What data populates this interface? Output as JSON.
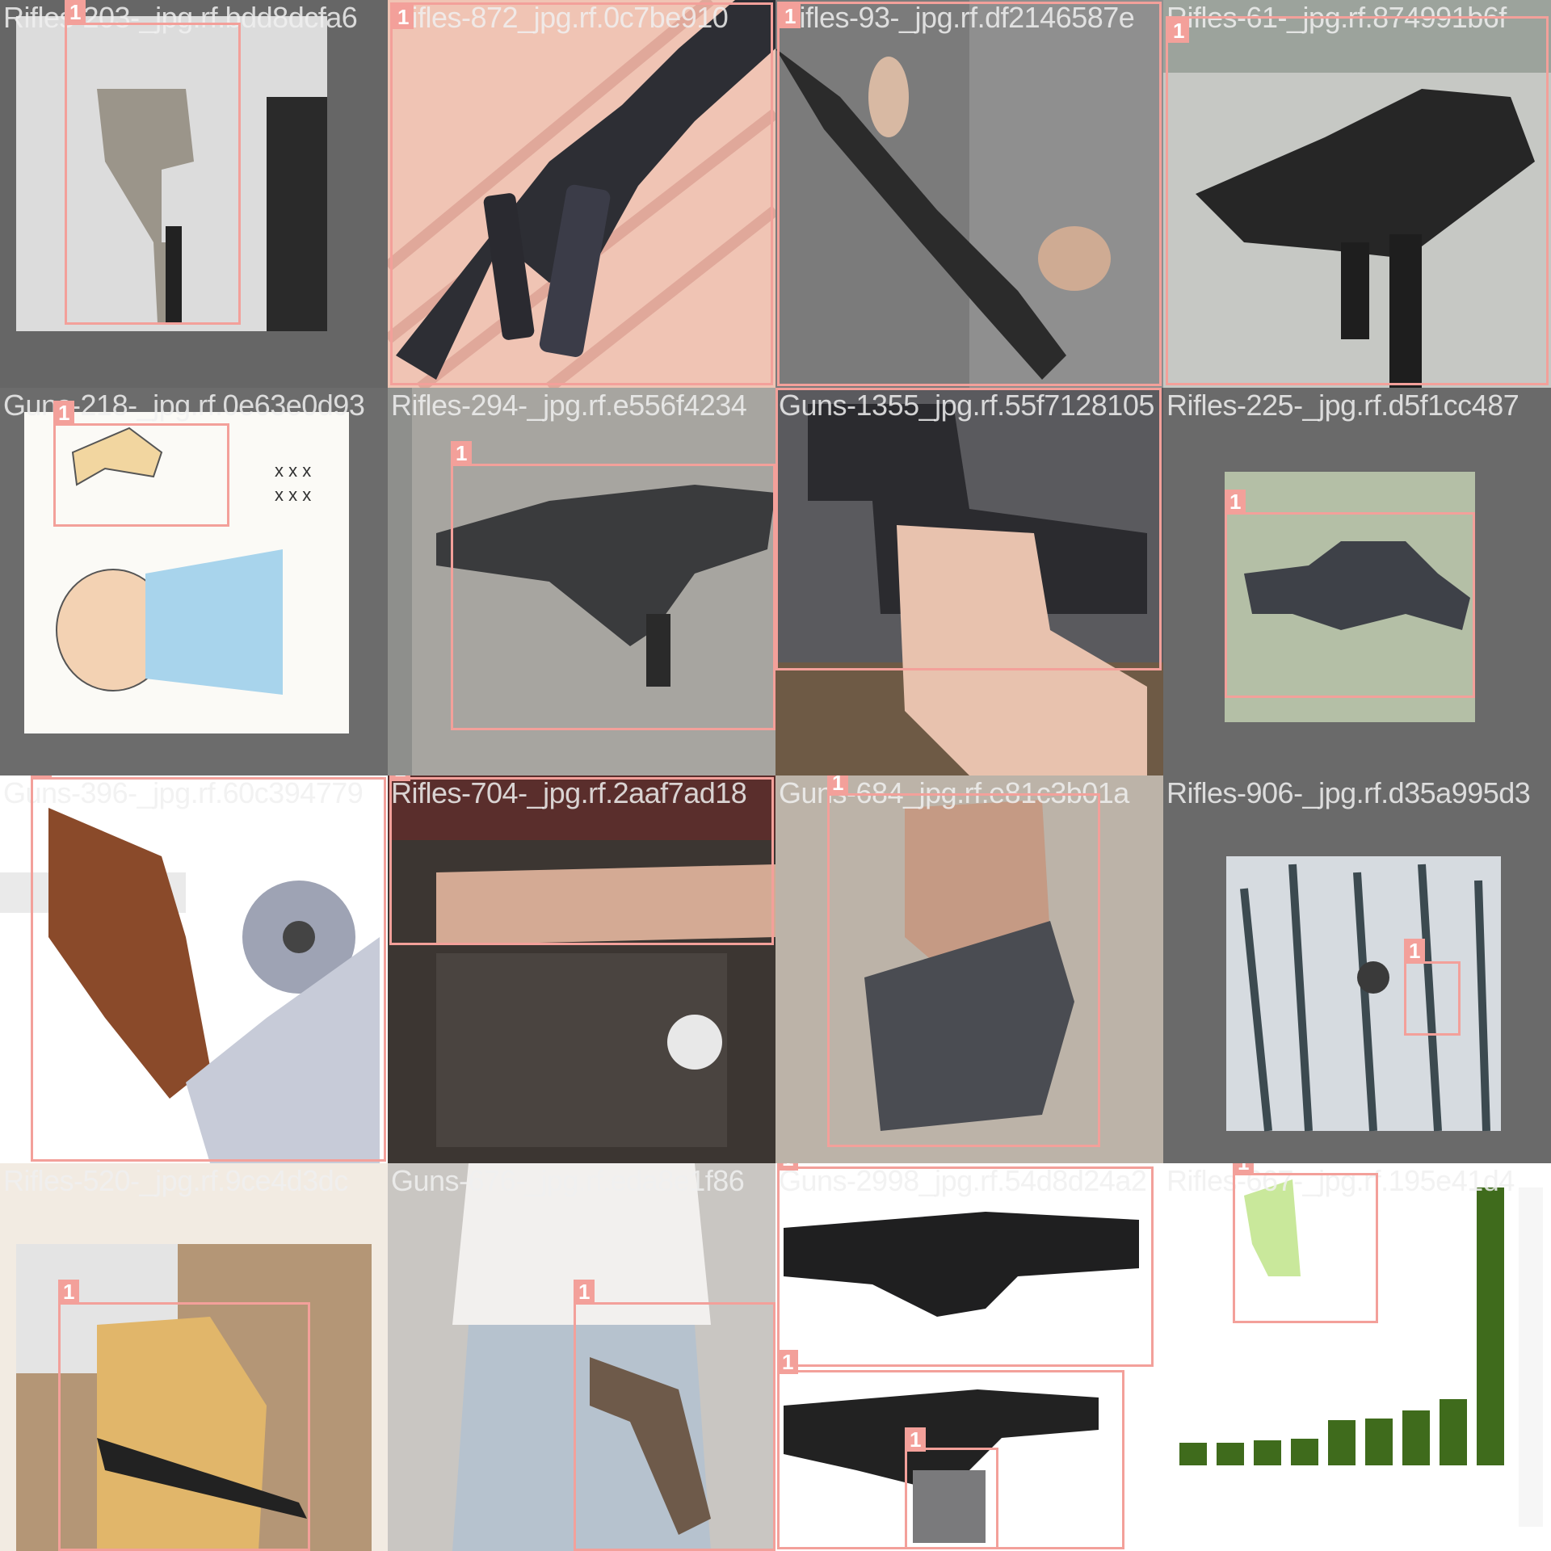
{
  "tiles": [
    {
      "filename": "Rifles-203-_jpg.rf.bdd8dcfa6",
      "label": "1"
    },
    {
      "filename": "Rifles-872_jpg.rf.0c7be910",
      "label": "1"
    },
    {
      "filename": "Rifles-93-_jpg.rf.df2146587e",
      "label": "1"
    },
    {
      "filename": "Rifles-61-_jpg.rf.874991b6f",
      "label": "1"
    },
    {
      "filename": "Guns-218-_jpg.rf.0e63e0d93",
      "label": "1"
    },
    {
      "filename": "Rifles-294-_jpg.rf.e556f4234",
      "label": "1"
    },
    {
      "filename": "Guns-1355_jpg.rf.55f7128105",
      "label": "1"
    },
    {
      "filename": "Rifles-225-_jpg.rf.d5f1cc487",
      "label": "1"
    },
    {
      "filename": "Guns-396-_jpg.rf.60c394779",
      "label": "1"
    },
    {
      "filename": "Rifles-704-_jpg.rf.2aaf7ad18",
      "label": "1"
    },
    {
      "filename": "Guns-684_jpg.rf.e81c3b01a",
      "label": "1"
    },
    {
      "filename": "Rifles-906-_jpg.rf.d35a995d3",
      "label": "1"
    },
    {
      "filename": "Rifles-520-_jpg.rf.9ce4d3dc",
      "label": "1"
    },
    {
      "filename": "Guns-676-_jpg.rf.eda8e1f86",
      "label": "1"
    },
    {
      "filename": "Guns-2998_jpg.rf.54d8d24a2",
      "label": "1"
    },
    {
      "filename": "Rifles-667-_jpg.rf.195e41d4",
      "label": "1"
    }
  ],
  "colors": {
    "box": "#f3a09a",
    "background": "#777777"
  }
}
